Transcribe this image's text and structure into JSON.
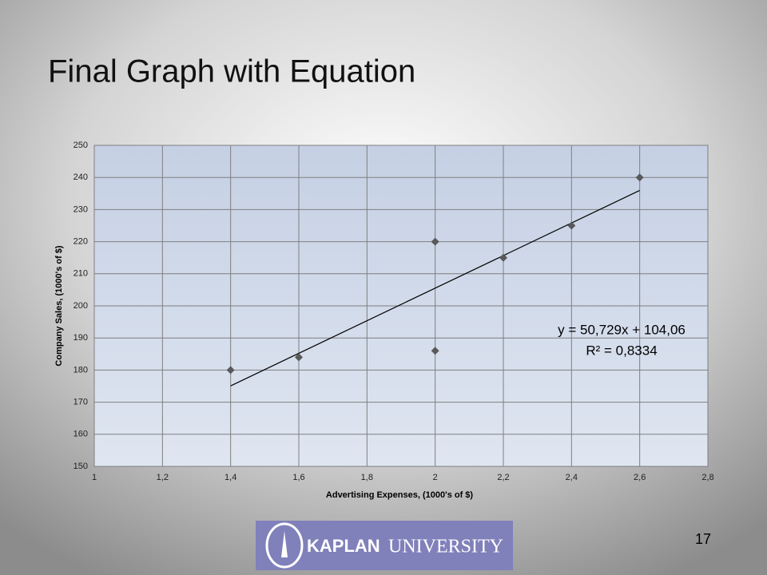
{
  "slide": {
    "title": "Final Graph with Equation",
    "page_number": "17",
    "logo": {
      "brand": "KAPLAN",
      "name": "UNIVERSITY"
    }
  },
  "chart_data": {
    "type": "scatter",
    "x_label": "Advertising Expenses, (1000's of $)",
    "y_label": "Company Sales, (1000's of $)",
    "x": [
      1.4,
      1.6,
      2,
      2,
      2.2,
      2.4,
      2.6
    ],
    "values": [
      180,
      184,
      220,
      186,
      215,
      225,
      240
    ],
    "color": "#595959",
    "trendline": {
      "x": [
        1.4,
        2.6
      ],
      "values": [
        175.08,
        235.96
      ],
      "color": "#000000"
    },
    "annotations": [
      "y = 50,729x + 104,06",
      "R² = 0,8334"
    ],
    "xlim": [
      1,
      2.8
    ],
    "xticks": [
      1,
      {
        "value": 1.2,
        "label": "1,2"
      },
      {
        "value": 1.4,
        "label": "1,4"
      },
      {
        "value": 1.6,
        "label": "1,6"
      },
      {
        "value": 1.8,
        "label": "1,8"
      },
      2,
      {
        "value": 2.2,
        "label": "2,2"
      },
      {
        "value": 2.4,
        "label": "2,4"
      },
      {
        "value": 2.6,
        "label": "2,6"
      },
      {
        "value": 2.8,
        "label": "2,8"
      }
    ],
    "ylim": [
      150,
      250
    ],
    "yticks": [
      150,
      160,
      170,
      180,
      190,
      200,
      210,
      220,
      230,
      240,
      250
    ],
    "grid": true
  }
}
